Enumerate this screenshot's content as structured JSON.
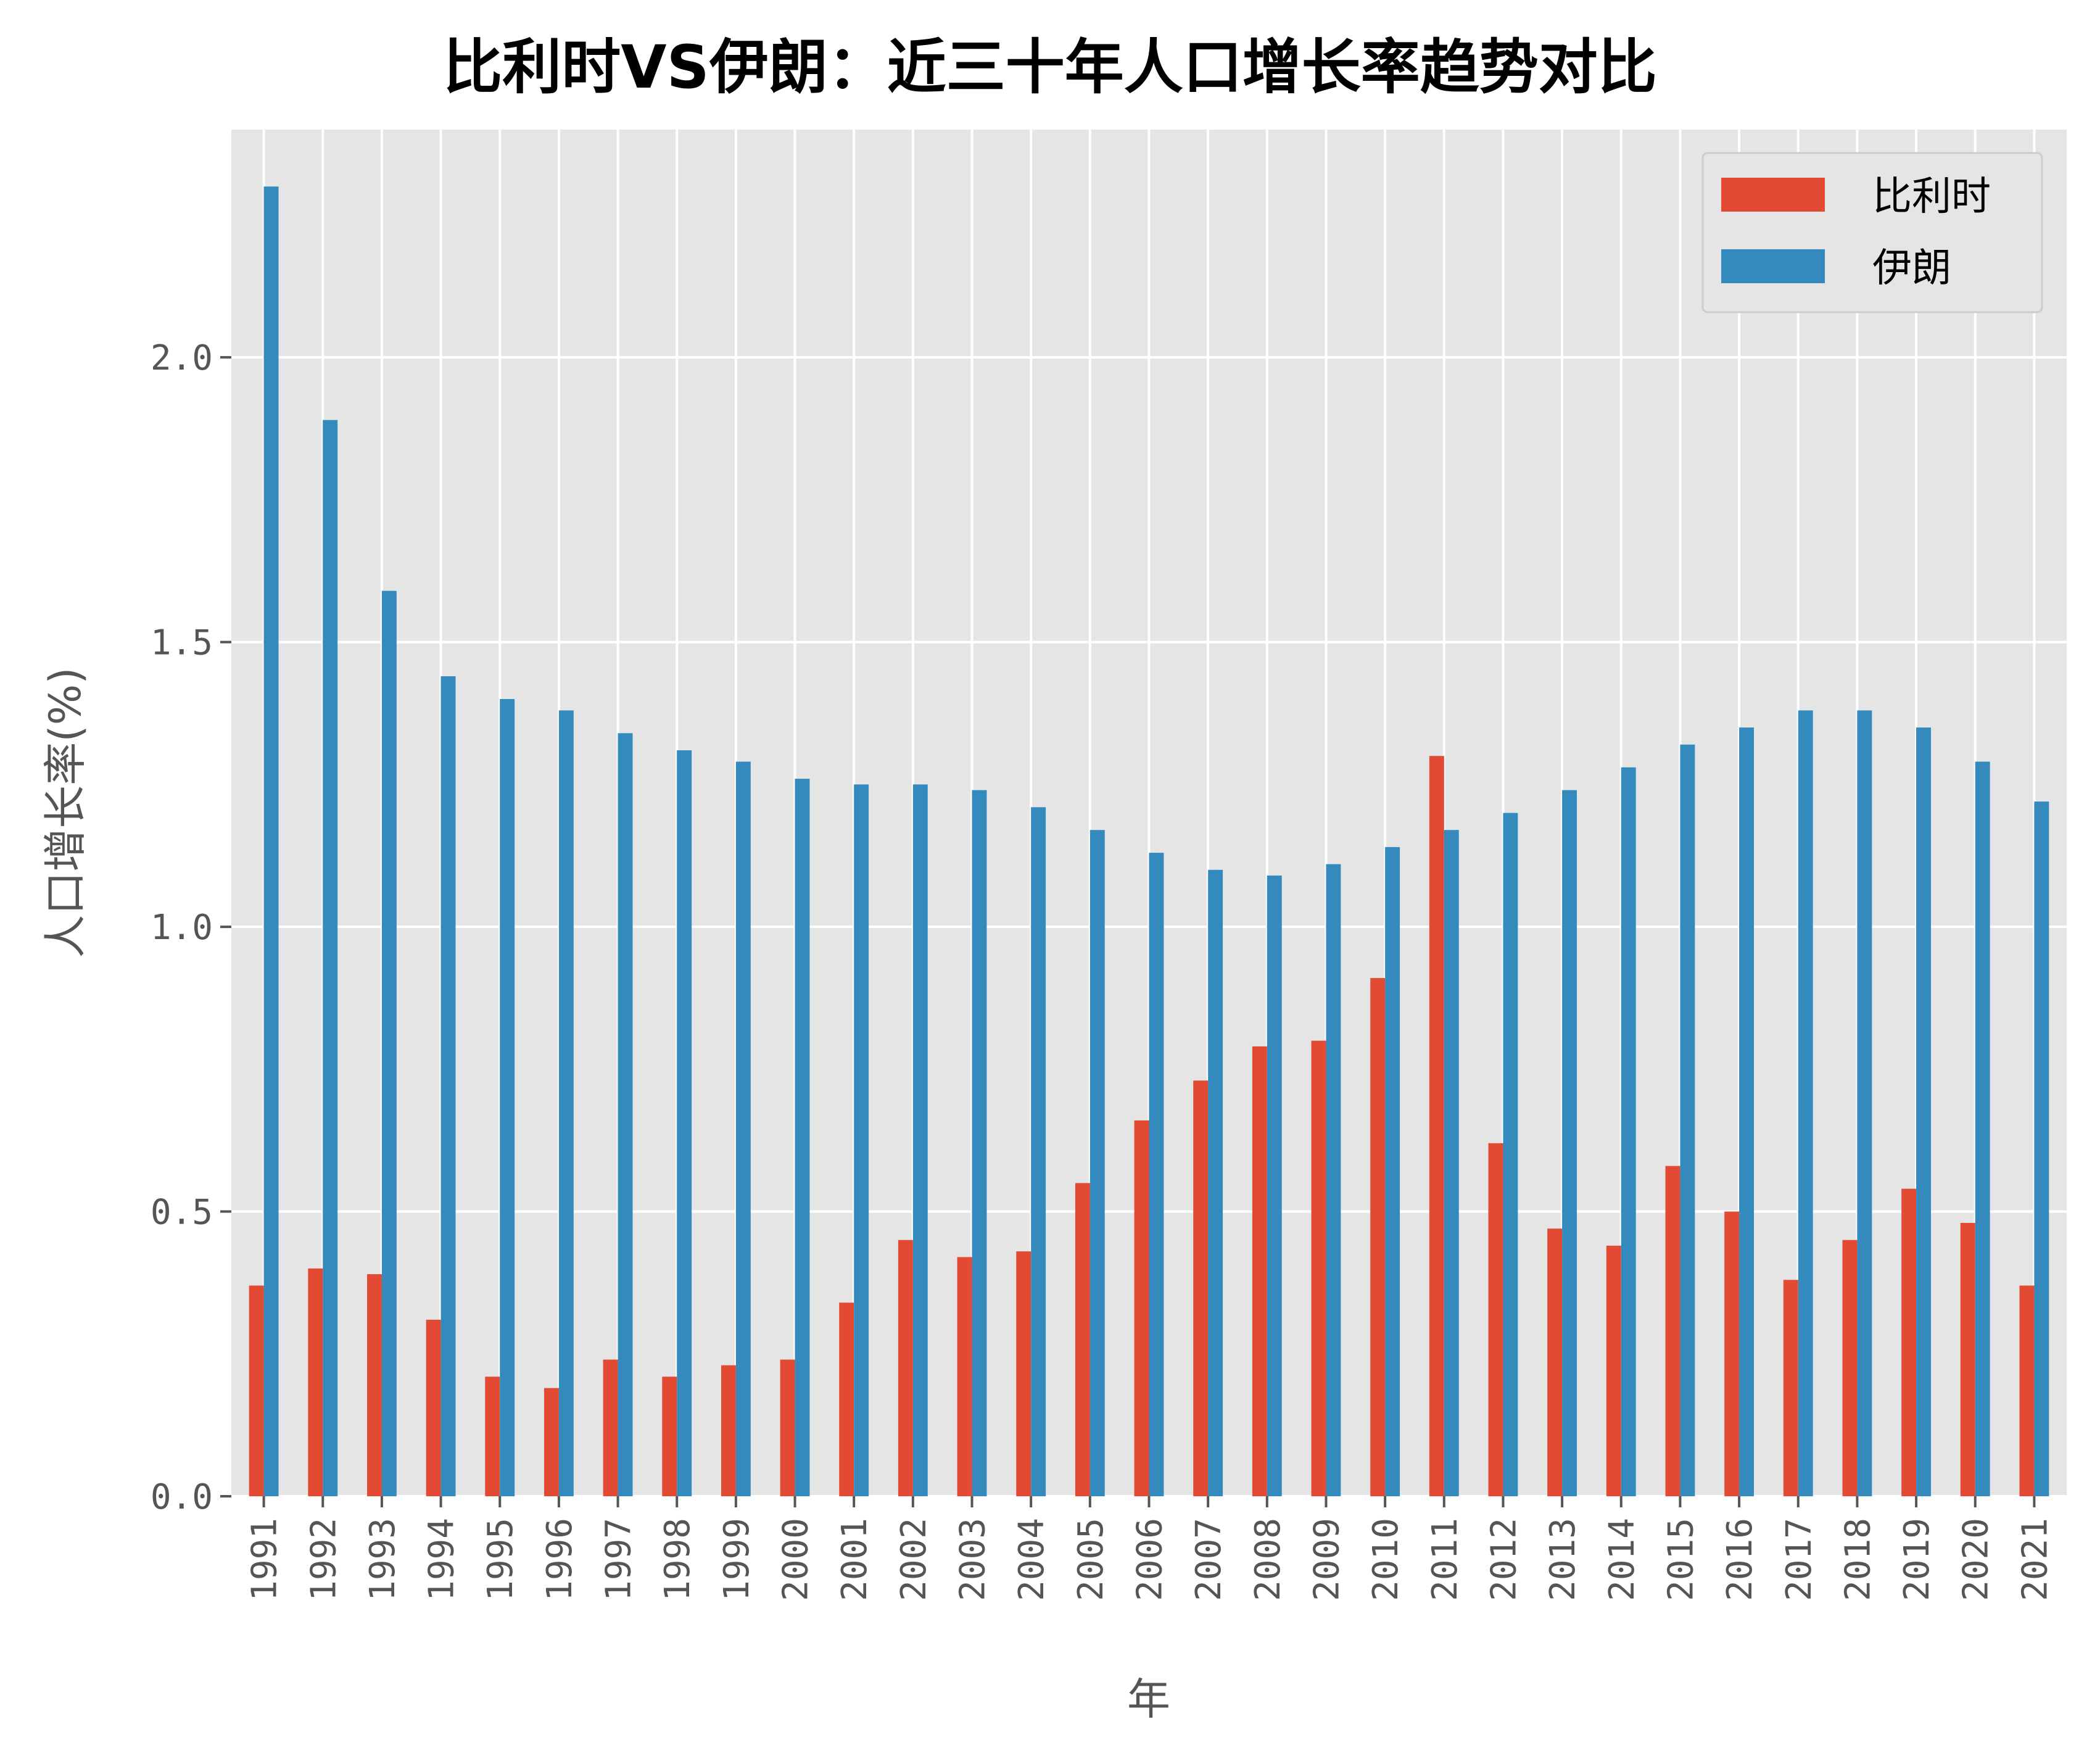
{
  "chart_data": {
    "type": "bar",
    "title": "比利时VS伊朗：近三十年人口增长率趋势对比",
    "xlabel": "年",
    "ylabel": "人口增长率(%)",
    "ylim": [
      0,
      2.4
    ],
    "yticks": [
      "0.0",
      "0.5",
      "1.0",
      "1.5",
      "2.0"
    ],
    "grid": true,
    "legend_position": "top-right",
    "categories": [
      "1991",
      "1992",
      "1993",
      "1994",
      "1995",
      "1996",
      "1997",
      "1998",
      "1999",
      "2000",
      "2001",
      "2002",
      "2003",
      "2004",
      "2005",
      "2006",
      "2007",
      "2008",
      "2009",
      "2010",
      "2011",
      "2012",
      "2013",
      "2014",
      "2015",
      "2016",
      "2017",
      "2018",
      "2019",
      "2020",
      "2021"
    ],
    "series": [
      {
        "name": "比利时",
        "color": "#E24A33",
        "values": [
          0.37,
          0.4,
          0.39,
          0.31,
          0.21,
          0.19,
          0.24,
          0.21,
          0.23,
          0.24,
          0.34,
          0.45,
          0.42,
          0.43,
          0.55,
          0.66,
          0.73,
          0.79,
          0.8,
          0.91,
          1.3,
          0.62,
          0.47,
          0.44,
          0.58,
          0.5,
          0.38,
          0.45,
          0.54,
          0.48,
          0.37
        ]
      },
      {
        "name": "伊朗",
        "color": "#348ABD",
        "values": [
          2.3,
          1.89,
          1.59,
          1.44,
          1.4,
          1.38,
          1.34,
          1.31,
          1.29,
          1.26,
          1.25,
          1.25,
          1.24,
          1.21,
          1.17,
          1.13,
          1.1,
          1.09,
          1.11,
          1.14,
          1.17,
          1.2,
          1.24,
          1.28,
          1.32,
          1.35,
          1.38,
          1.38,
          1.35,
          1.29,
          1.22
        ]
      }
    ]
  }
}
